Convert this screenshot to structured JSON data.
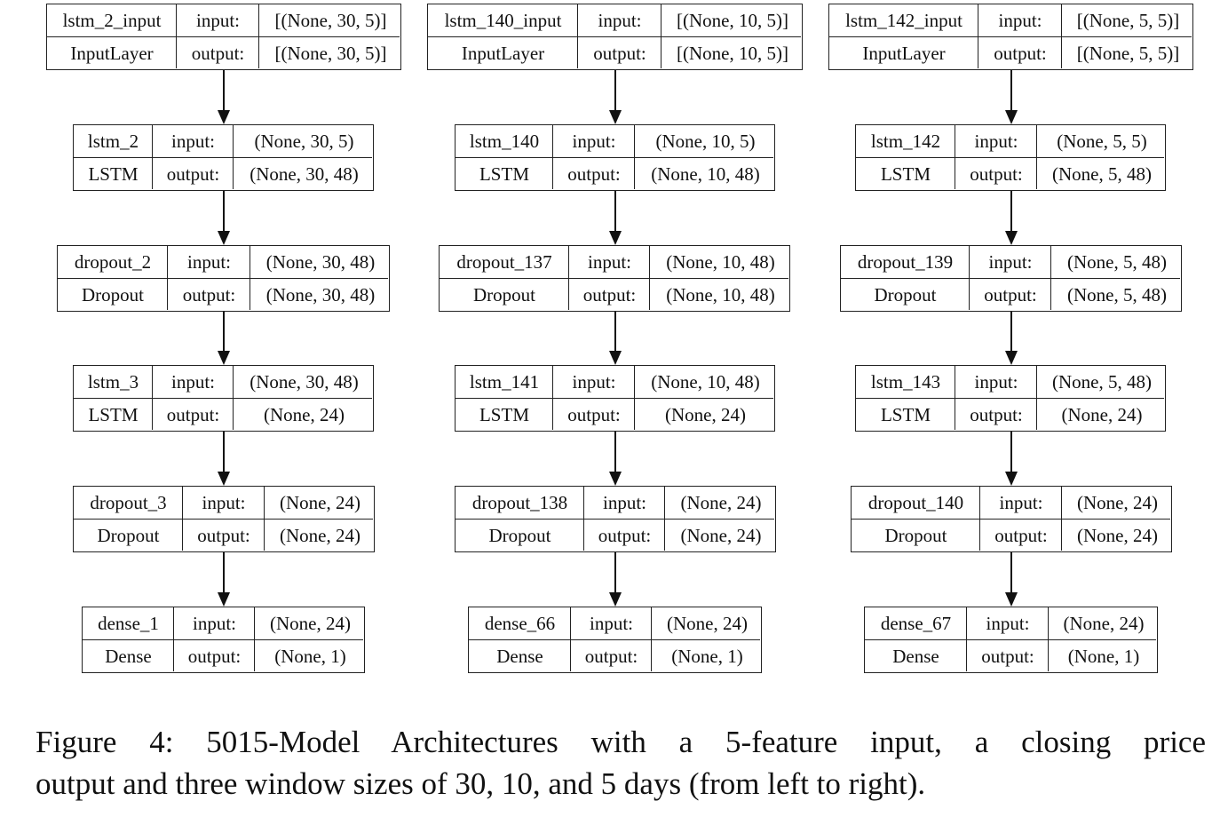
{
  "cell_labels": {
    "input": "input:",
    "output": "output:"
  },
  "models": [
    {
      "layers": [
        {
          "name": "lstm_2_input",
          "type": "InputLayer",
          "input_shape": "[(None, 30, 5)]",
          "output_shape": "[(None, 30, 5)]"
        },
        {
          "name": "lstm_2",
          "type": "LSTM",
          "input_shape": "(None, 30, 5)",
          "output_shape": "(None, 30, 48)"
        },
        {
          "name": "dropout_2",
          "type": "Dropout",
          "input_shape": "(None, 30, 48)",
          "output_shape": "(None, 30, 48)"
        },
        {
          "name": "lstm_3",
          "type": "LSTM",
          "input_shape": "(None, 30, 48)",
          "output_shape": "(None, 24)"
        },
        {
          "name": "dropout_3",
          "type": "Dropout",
          "input_shape": "(None, 24)",
          "output_shape": "(None, 24)"
        },
        {
          "name": "dense_1",
          "type": "Dense",
          "input_shape": "(None, 24)",
          "output_shape": "(None, 1)"
        }
      ]
    },
    {
      "layers": [
        {
          "name": "lstm_140_input",
          "type": "InputLayer",
          "input_shape": "[(None, 10, 5)]",
          "output_shape": "[(None, 10, 5)]"
        },
        {
          "name": "lstm_140",
          "type": "LSTM",
          "input_shape": "(None, 10, 5)",
          "output_shape": "(None, 10, 48)"
        },
        {
          "name": "dropout_137",
          "type": "Dropout",
          "input_shape": "(None, 10, 48)",
          "output_shape": "(None, 10, 48)"
        },
        {
          "name": "lstm_141",
          "type": "LSTM",
          "input_shape": "(None, 10, 48)",
          "output_shape": "(None, 24)"
        },
        {
          "name": "dropout_138",
          "type": "Dropout",
          "input_shape": "(None, 24)",
          "output_shape": "(None, 24)"
        },
        {
          "name": "dense_66",
          "type": "Dense",
          "input_shape": "(None, 24)",
          "output_shape": "(None, 1)"
        }
      ]
    },
    {
      "layers": [
        {
          "name": "lstm_142_input",
          "type": "InputLayer",
          "input_shape": "[(None, 5, 5)]",
          "output_shape": "[(None, 5, 5)]"
        },
        {
          "name": "lstm_142",
          "type": "LSTM",
          "input_shape": "(None, 5, 5)",
          "output_shape": "(None, 5, 48)"
        },
        {
          "name": "dropout_139",
          "type": "Dropout",
          "input_shape": "(None, 5, 48)",
          "output_shape": "(None, 5, 48)"
        },
        {
          "name": "lstm_143",
          "type": "LSTM",
          "input_shape": "(None, 5, 48)",
          "output_shape": "(None, 24)"
        },
        {
          "name": "dropout_140",
          "type": "Dropout",
          "input_shape": "(None, 24)",
          "output_shape": "(None, 24)"
        },
        {
          "name": "dense_67",
          "type": "Dense",
          "input_shape": "(None, 24)",
          "output_shape": "(None, 1)"
        }
      ]
    }
  ],
  "caption": {
    "line1": "Figure 4:  5015-Model Architectures with a 5-feature input, a closing price",
    "line2": "output and three window sizes of 30, 10, and 5 days (from left to right)."
  }
}
